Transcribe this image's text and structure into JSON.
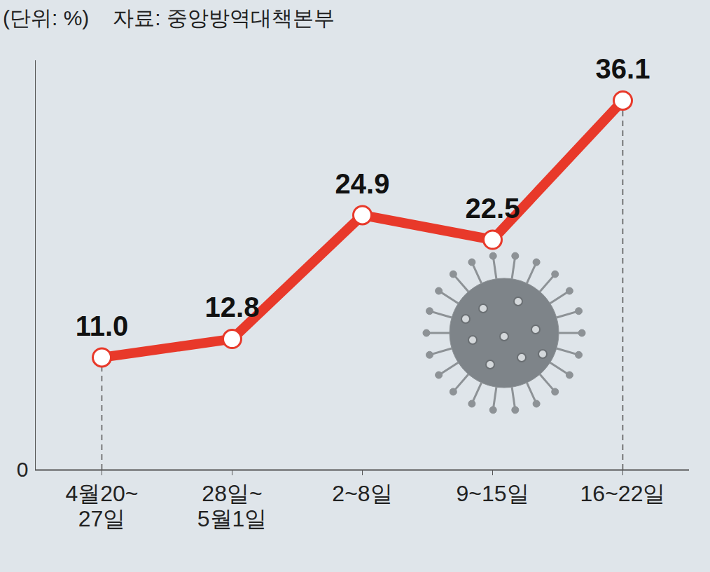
{
  "chart_data": {
    "type": "line",
    "subtitle": "(단위: %)",
    "source": "자료: 중앙방역대책본부",
    "categories": [
      "4월20~27일",
      "28일~5월1일",
      "2~8일",
      "9~15일",
      "16~22일"
    ],
    "values": [
      11.0,
      12.8,
      24.9,
      22.5,
      36.1
    ],
    "value_labels": [
      "11.0",
      "12.8",
      "24.9",
      "22.5",
      "36.1"
    ],
    "data_labels": true,
    "color": "#e8392a",
    "marker": "circle",
    "ylim": [
      0,
      40
    ],
    "yticks": [
      0
    ],
    "grid": false
  }
}
